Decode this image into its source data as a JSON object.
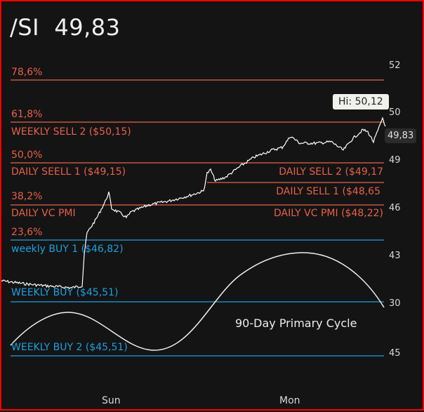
{
  "header": {
    "symbol": "/SI",
    "price": "49,83"
  },
  "colors": {
    "sell": "#e8604a",
    "buy": "#1aa0e0",
    "price_line": "#ffffff",
    "background": "#141414"
  },
  "levels": {
    "fib_786": "78,6%",
    "fib_618": "61,8%",
    "weekly_sell_2": "WEEKLY SELL 2 ($50,15)",
    "fib_500": "50,0%",
    "daily_seell_1": "DAILY SEELL 1 ($49,15)",
    "daily_sell_2": "DAILY SELL 2 ($49,17",
    "daily_sell_1": "DAILY SELL 1 ($48,65",
    "fib_382": "38,2%",
    "daily_vc_pmi": "DAILY VC PMI",
    "daily_vc_pmi_price": "DAILY VC PMI ($48,22)",
    "fib_236": "23,6%",
    "weekly_buy_1": "weekly BUY 1 ($46,82)",
    "weekly_buy": "WEEKLY BUY  ($45,51)",
    "weekly_buy_2": "WEEKLY BUY 2 ($45,51)"
  },
  "y_axis": [
    "52",
    "50",
    "49",
    "46",
    "43",
    "30",
    "45"
  ],
  "x_axis": [
    "Sun",
    "Mon"
  ],
  "hi_label": "Hi: 50,12",
  "last_price": "49,83",
  "cycle_label": "90-Day Primary Cycle"
}
